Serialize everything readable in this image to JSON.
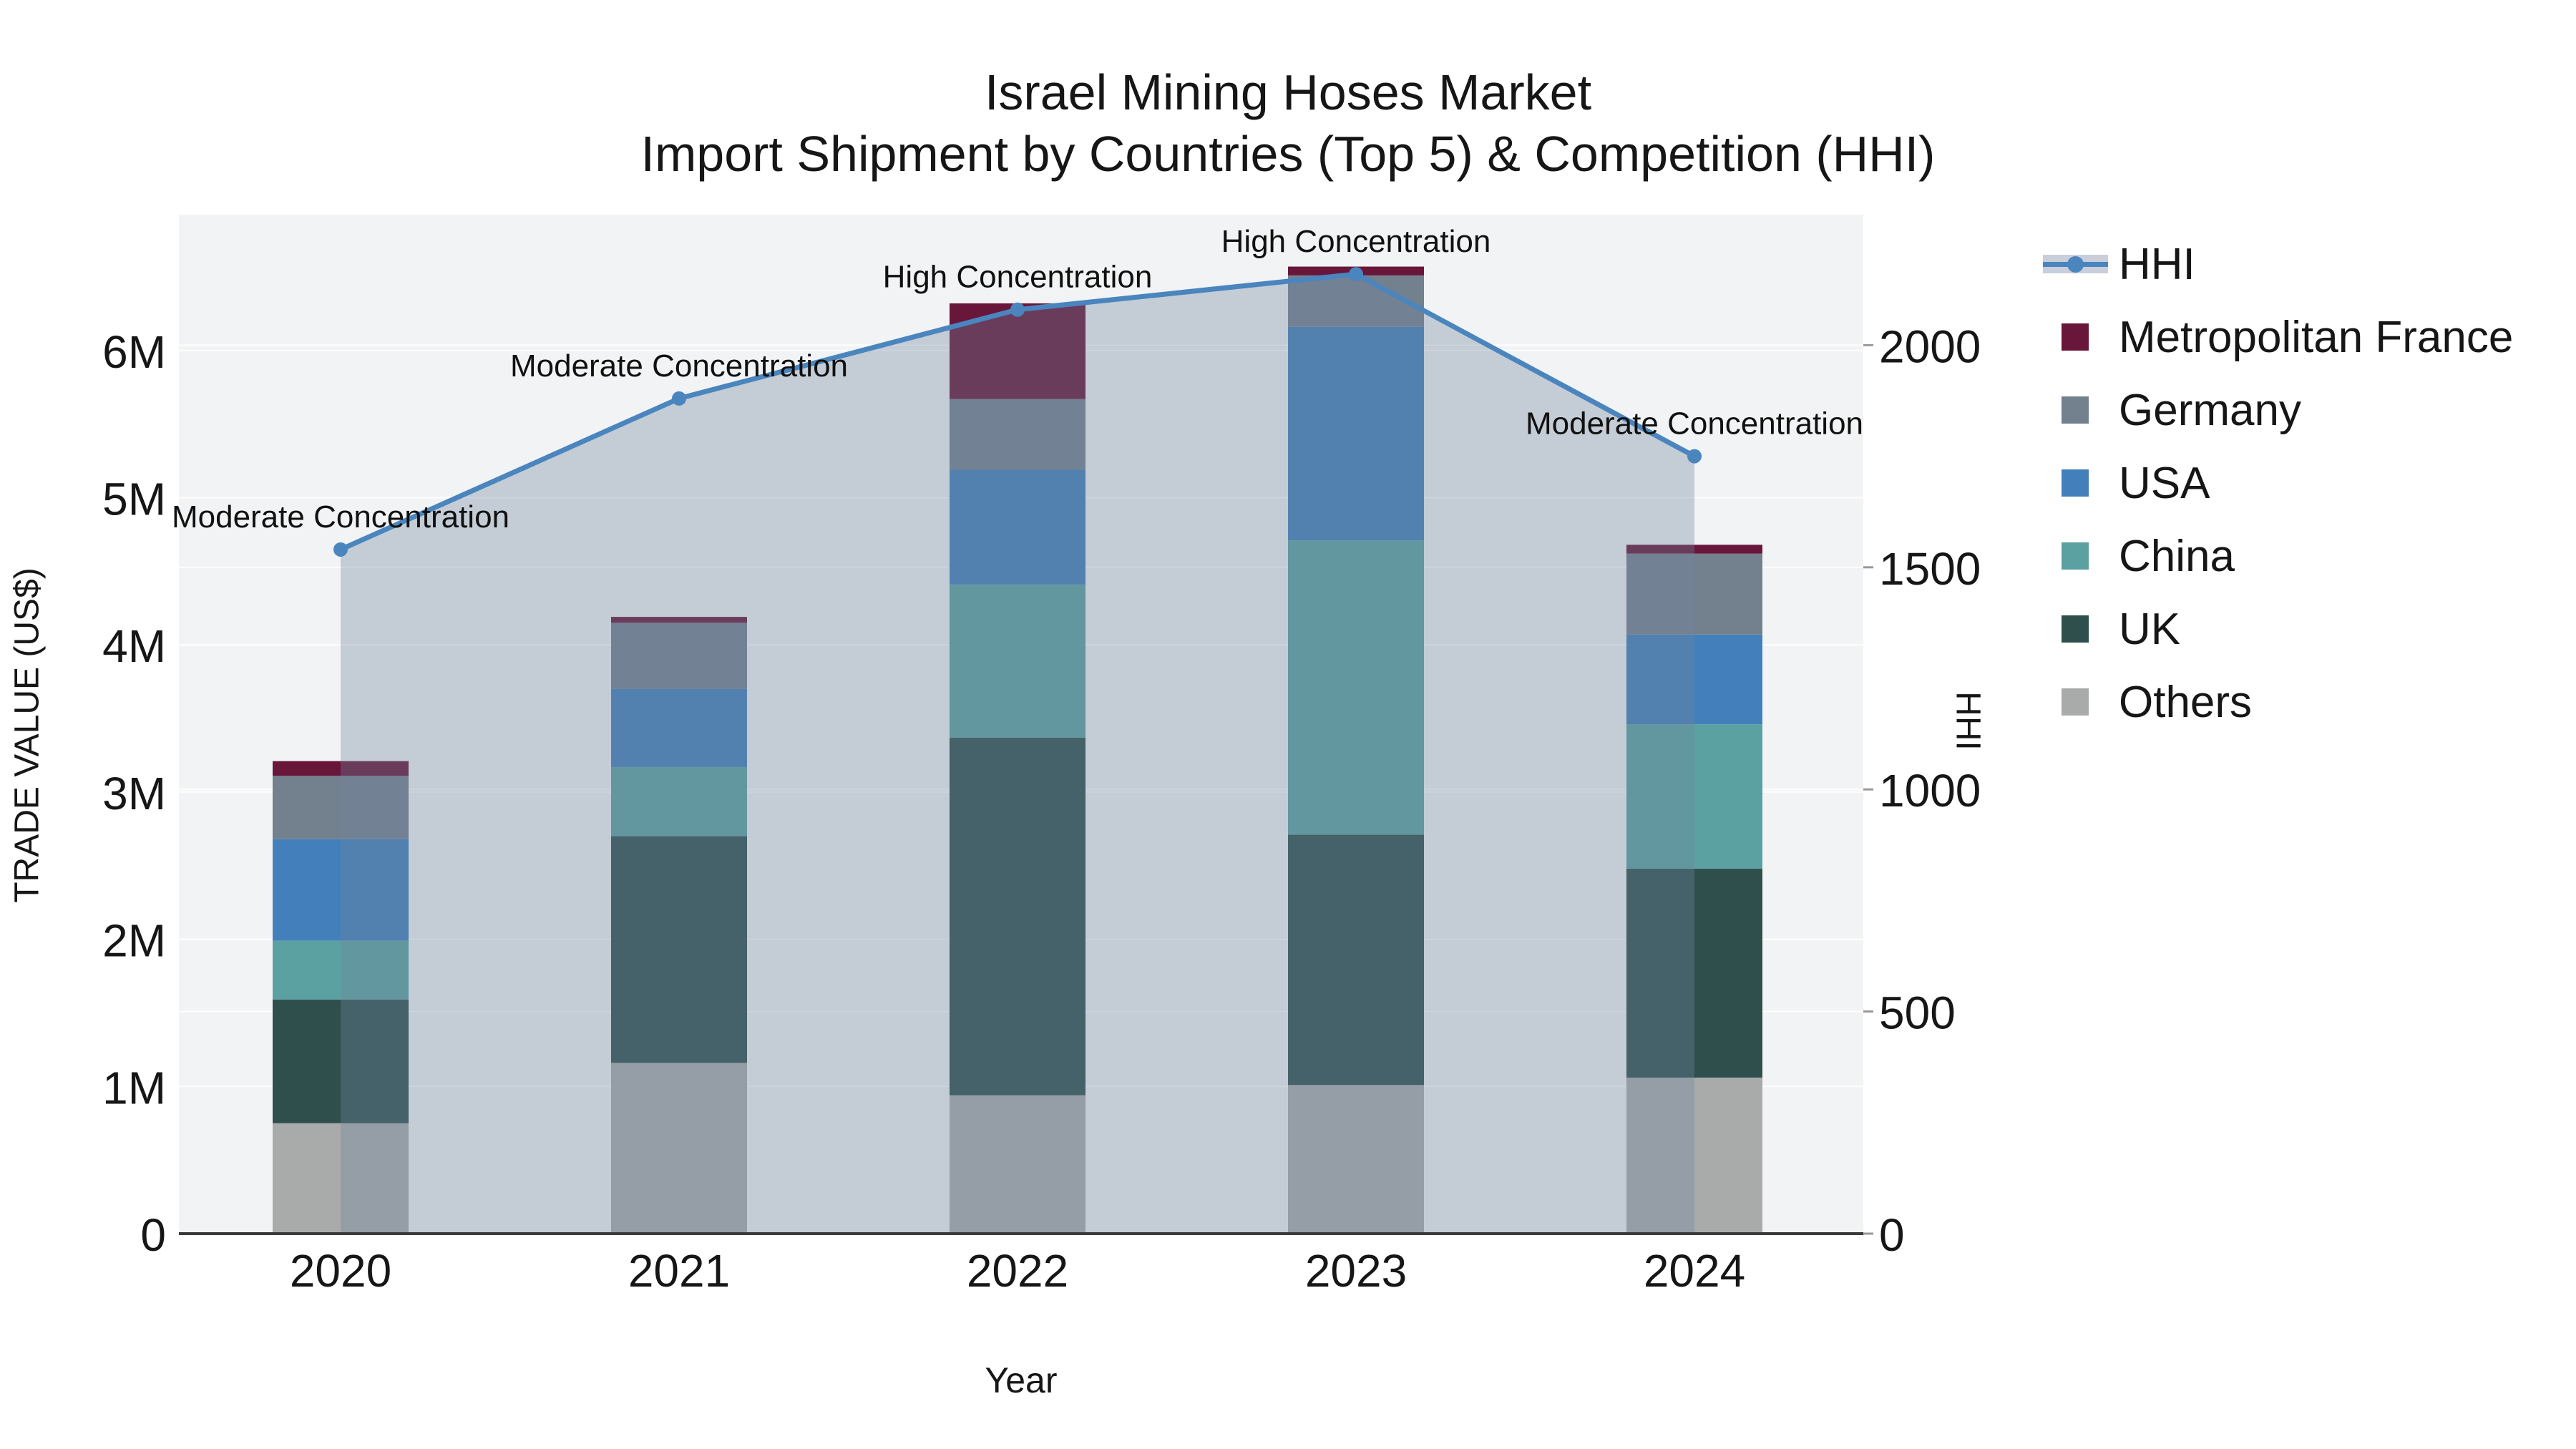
{
  "title": {
    "line1": "Israel Mining Hoses Market",
    "line2": "Import Shipment by Countries (Top 5) & Competition (HHI)"
  },
  "axes": {
    "x_title": "Year",
    "y_left_title": "TRADE VALUE (US$)",
    "y_right_title": "HHI",
    "x_ticks": [
      "2020",
      "2021",
      "2022",
      "2023",
      "2024"
    ],
    "y_left_ticks": [
      "0",
      "1M",
      "2M",
      "3M",
      "4M",
      "5M",
      "6M"
    ],
    "y_right_ticks": [
      "0",
      "500",
      "1000",
      "1500",
      "2000"
    ]
  },
  "legend": {
    "items": [
      {
        "label": "HHI",
        "type": "line",
        "color": "#4A85BE",
        "band_color": "#C9CEDA"
      },
      {
        "label": "Metropolitan France",
        "type": "square",
        "color": "#68163A"
      },
      {
        "label": "Germany",
        "type": "square",
        "color": "#73808E"
      },
      {
        "label": "USA",
        "type": "square",
        "color": "#4380BB"
      },
      {
        "label": "China",
        "type": "square",
        "color": "#5CA1A1"
      },
      {
        "label": "UK",
        "type": "square",
        "color": "#2F4F4D"
      },
      {
        "label": "Others",
        "type": "square",
        "color": "#A9ABAB"
      }
    ]
  },
  "colors": {
    "plot_bg": "#F2F3F4",
    "figure_bg": "#FFFFFF",
    "gridline": "rgba(255,255,255,0.85)",
    "axis_line": "#3B3B3B",
    "tick_mark": "#999999",
    "hhi_line": "#4A85BE",
    "hhi_area_fill": "rgba(113,131,158,0.35)",
    "annotation_text": "#111111",
    "tick_text": "#161616"
  },
  "chart_data": {
    "type": [
      "bar",
      "line"
    ],
    "title": "Israel Mining Hoses Market — Import Shipment by Countries (Top 5) & Competition (HHI)",
    "xlabel": "Year",
    "ylabel": "TRADE VALUE (US$)",
    "y2label": "HHI",
    "categories": [
      "2020",
      "2021",
      "2022",
      "2023",
      "2024"
    ],
    "stack_order_bottom_to_top": [
      "Others",
      "UK",
      "China",
      "USA",
      "Germany",
      "Metropolitan France"
    ],
    "series": [
      {
        "name": "Others",
        "color": "#A9ABAB",
        "values_musd": [
          0.75,
          1.16,
          0.94,
          1.01,
          1.06
        ]
      },
      {
        "name": "UK",
        "color": "#2F4F4D",
        "values_musd": [
          0.84,
          1.54,
          2.43,
          1.7,
          1.42
        ]
      },
      {
        "name": "China",
        "color": "#5CA1A1",
        "values_musd": [
          0.4,
          0.47,
          1.04,
          2.0,
          0.98
        ]
      },
      {
        "name": "USA",
        "color": "#4380BB",
        "values_musd": [
          0.69,
          0.53,
          0.78,
          1.45,
          0.61
        ]
      },
      {
        "name": "Germany",
        "color": "#73808E",
        "values_musd": [
          0.43,
          0.45,
          0.48,
          0.35,
          0.55
        ]
      },
      {
        "name": "Metropolitan France",
        "color": "#68163A",
        "values_musd": [
          0.1,
          0.04,
          0.65,
          0.06,
          0.06
        ]
      }
    ],
    "stack_totals_musd": [
      3.21,
      4.19,
      6.32,
      6.57,
      4.68
    ],
    "hhi_line": {
      "name": "HHI",
      "values": [
        1540,
        1880,
        2080,
        2160,
        1750
      ],
      "color": "#4A85BE",
      "area_fill": "rgba(113,131,158,0.35)",
      "markers": true
    },
    "annotations": [
      {
        "category": "2020",
        "text": "Moderate Concentration"
      },
      {
        "category": "2021",
        "text": "Moderate Concentration"
      },
      {
        "category": "2022",
        "text": "High Concentration"
      },
      {
        "category": "2023",
        "text": "High Concentration"
      },
      {
        "category": "2024",
        "text": "Moderate Concentration"
      }
    ],
    "y_left_lim_musd": [
      0,
      7.0
    ],
    "y_right_lim": [
      0,
      2290
    ],
    "grid": true,
    "legend_position": "right"
  }
}
